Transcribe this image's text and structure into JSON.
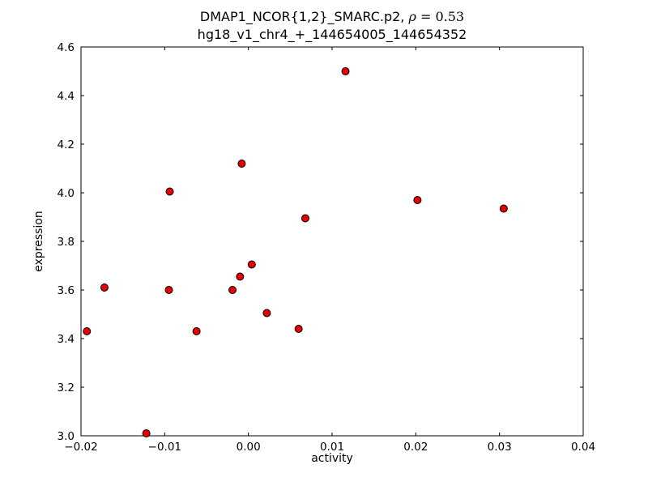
{
  "chart_data": {
    "type": "scatter",
    "title_prefix": "DMAP1_NCOR{1,2}_SMARC.p2, ",
    "rho_symbol": "ρ",
    "rho_value": " = 0.53",
    "title_line2": "hg18_v1_chr4_+_144654005_144654352",
    "xlabel": "activity",
    "ylabel": "expression",
    "xlim": [
      -0.02,
      0.04
    ],
    "ylim": [
      3.0,
      4.6
    ],
    "grid": false,
    "legend": "none",
    "xticks": {
      "values": [
        -0.02,
        -0.01,
        0.0,
        0.01,
        0.02,
        0.03,
        0.04
      ],
      "labels": [
        "−0.02",
        "−0.01",
        "0.00",
        "0.01",
        "0.02",
        "0.03",
        "0.04"
      ]
    },
    "yticks": {
      "values": [
        3.0,
        3.2,
        3.4,
        3.6,
        3.8,
        4.0,
        4.2,
        4.4,
        4.6
      ],
      "labels": [
        "3.0",
        "3.2",
        "3.4",
        "3.6",
        "3.8",
        "4.0",
        "4.2",
        "4.4",
        "4.6"
      ]
    },
    "marker": {
      "shape": "circle",
      "fill": "#e60000",
      "edge": "#000000",
      "radius": 4.5
    },
    "frame_color": "#000000",
    "points": [
      [
        -0.0193,
        3.43
      ],
      [
        -0.0172,
        3.61
      ],
      [
        -0.0122,
        3.01
      ],
      [
        -0.0095,
        3.6
      ],
      [
        -0.0094,
        4.005
      ],
      [
        -0.0062,
        3.43
      ],
      [
        -0.0019,
        3.6
      ],
      [
        -0.001,
        3.655
      ],
      [
        -0.0008,
        4.12
      ],
      [
        0.0004,
        3.705
      ],
      [
        0.0022,
        3.505
      ],
      [
        0.006,
        3.44
      ],
      [
        0.0068,
        3.895
      ],
      [
        0.0116,
        4.5
      ],
      [
        0.0202,
        3.97
      ],
      [
        0.0305,
        3.935
      ]
    ]
  }
}
